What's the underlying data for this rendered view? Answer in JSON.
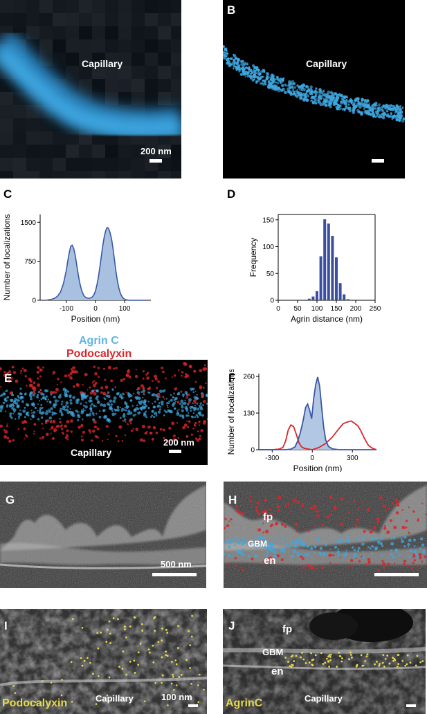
{
  "panels": {
    "A": {
      "letter": "A",
      "label": "Capillary",
      "scale": "200 nm"
    },
    "B": {
      "letter": "B",
      "label": "Capillary"
    },
    "C": {
      "letter": "C"
    },
    "D": {
      "letter": "D"
    },
    "E": {
      "letter": "E",
      "label": "Capillary",
      "scale": "200 nm",
      "legend_agrin": "Agrin C",
      "legend_podo": "Podocalyxin"
    },
    "F": {
      "letter": "F"
    },
    "G": {
      "letter": "G",
      "scale": "500 nm"
    },
    "H": {
      "letter": "H",
      "fp": "fp",
      "gbm": "GBM",
      "en": "en"
    },
    "I": {
      "letter": "I",
      "label": "Capillary",
      "scale": "100 nm",
      "stain": "Podocalyxin"
    },
    "J": {
      "letter": "J",
      "fp": "fp",
      "gbm": "GBM",
      "en": "en",
      "label": "Capillary",
      "stain": "AgrinC"
    }
  },
  "colors": {
    "agrin": "#3fa7e0",
    "podocalyxin": "#d9262b",
    "hist_fill": "#a9c1e0",
    "hist_line": "#3a56a5",
    "bar": "#3a4fa0",
    "gold": "#e6d84a"
  },
  "chart_data": [
    {
      "panel": "C",
      "type": "area",
      "xlabel": "Position (nm)",
      "ylabel": "Number of localizations",
      "xlim": [
        -190,
        190
      ],
      "ylim": [
        0,
        1650
      ],
      "xticks": [
        -100,
        0,
        100
      ],
      "xtick_labels": [
        "-100",
        "0",
        "100"
      ],
      "yticks": [
        0,
        750,
        1500
      ],
      "ytick_labels": [
        "0",
        "750",
        "1500"
      ],
      "x": [
        -170,
        -160,
        -150,
        -140,
        -130,
        -120,
        -110,
        -100,
        -95,
        -90,
        -85,
        -80,
        -75,
        -70,
        -65,
        -60,
        -55,
        -50,
        -45,
        -40,
        -35,
        -30,
        -25,
        -20,
        -15,
        -10,
        -5,
        0,
        5,
        10,
        15,
        20,
        25,
        30,
        35,
        40,
        45,
        50,
        55,
        60,
        65,
        70,
        75,
        80,
        85,
        90,
        95,
        100,
        105,
        110,
        115,
        120,
        130,
        140,
        150,
        160,
        170
      ],
      "y": [
        0,
        10,
        20,
        40,
        80,
        160,
        320,
        580,
        760,
        920,
        1040,
        1060,
        1000,
        880,
        700,
        520,
        360,
        240,
        150,
        90,
        60,
        45,
        40,
        40,
        50,
        70,
        110,
        180,
        300,
        450,
        640,
        850,
        1050,
        1220,
        1340,
        1400,
        1380,
        1300,
        1180,
        1000,
        780,
        560,
        380,
        240,
        140,
        80,
        40,
        20,
        10,
        5,
        0,
        0,
        0,
        0,
        0,
        0,
        0
      ]
    },
    {
      "panel": "D",
      "type": "bar",
      "xlabel": "Agrin distance (nm)",
      "ylabel": "Frequency",
      "xlim": [
        0,
        250
      ],
      "ylim": [
        0,
        160
      ],
      "xticks": [
        0,
        50,
        100,
        150,
        200,
        250
      ],
      "xtick_labels": [
        "0",
        "50",
        "100",
        "150",
        "200",
        "250"
      ],
      "yticks": [
        0,
        50,
        100,
        150
      ],
      "ytick_labels": [
        "0",
        "50",
        "100",
        "150"
      ],
      "bin_width": 10,
      "bins": [
        70,
        80,
        90,
        100,
        110,
        120,
        130,
        140,
        150,
        160,
        170,
        180,
        190
      ],
      "values": [
        1,
        3,
        7,
        17,
        82,
        151,
        143,
        120,
        80,
        32,
        11,
        2,
        1
      ]
    },
    {
      "panel": "F",
      "type": "line",
      "xlabel": "Position (nm)",
      "ylabel": "Number of localizations",
      "xlim": [
        -400,
        480
      ],
      "ylim": [
        0,
        270
      ],
      "xticks": [
        -300,
        0,
        300
      ],
      "xtick_labels": [
        "-300",
        "0",
        "300"
      ],
      "yticks": [
        0,
        130,
        260
      ],
      "ytick_labels": [
        "0",
        "130",
        "260"
      ],
      "series": [
        {
          "color": "#d9262b",
          "x": [
            -400,
            -300,
            -250,
            -220,
            -200,
            -180,
            -160,
            -140,
            -120,
            -100,
            -80,
            -60,
            -40,
            0,
            50,
            100,
            150,
            200,
            230,
            260,
            290,
            310,
            340,
            360,
            390,
            420,
            450,
            480
          ],
          "y": [
            0,
            0,
            2,
            8,
            30,
            70,
            88,
            82,
            55,
            25,
            10,
            5,
            3,
            0,
            8,
            22,
            45,
            75,
            92,
            98,
            102,
            96,
            85,
            70,
            40,
            15,
            5,
            0
          ]
        },
        {
          "color": "#3a56a5",
          "fill": "#a9c1e0",
          "x": [
            -400,
            -200,
            -160,
            -130,
            -110,
            -90,
            -70,
            -50,
            -35,
            -20,
            -5,
            10,
            25,
            40,
            55,
            70,
            85,
            100,
            120,
            150,
            200,
            480
          ],
          "y": [
            0,
            0,
            2,
            10,
            30,
            60,
            100,
            150,
            162,
            140,
            110,
            180,
            230,
            258,
            225,
            150,
            80,
            35,
            12,
            3,
            0,
            0
          ]
        }
      ]
    }
  ]
}
